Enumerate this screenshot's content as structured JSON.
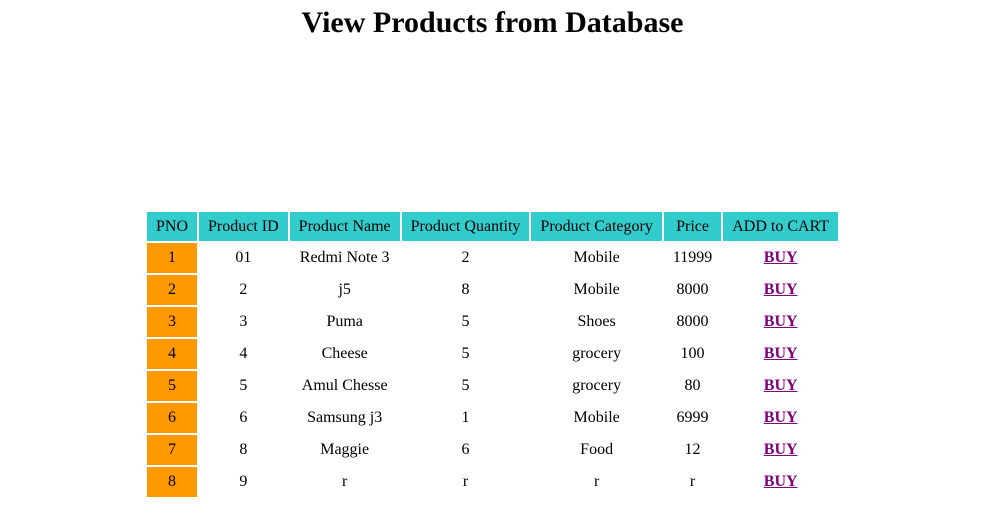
{
  "page": {
    "title": "View Products from Database"
  },
  "table": {
    "headers": [
      "PNO",
      "Product ID",
      "Product Name",
      "Product Quantity",
      "Product Category",
      "Price",
      "ADD to CART"
    ],
    "rows": [
      {
        "pno": "1",
        "product_id": "01",
        "name": "Redmi Note 3",
        "quantity": "2",
        "category": "Mobile",
        "price": "11999",
        "action": "BUY"
      },
      {
        "pno": "2",
        "product_id": "2",
        "name": "j5",
        "quantity": "8",
        "category": "Mobile",
        "price": "8000",
        "action": "BUY"
      },
      {
        "pno": "3",
        "product_id": "3",
        "name": "Puma",
        "quantity": "5",
        "category": "Shoes",
        "price": "8000",
        "action": "BUY"
      },
      {
        "pno": "4",
        "product_id": "4",
        "name": "Cheese",
        "quantity": "5",
        "category": "grocery",
        "price": "100",
        "action": "BUY"
      },
      {
        "pno": "5",
        "product_id": "5",
        "name": "Amul Chesse",
        "quantity": "5",
        "category": "grocery",
        "price": "80",
        "action": "BUY"
      },
      {
        "pno": "6",
        "product_id": "6",
        "name": "Samsung j3",
        "quantity": "1",
        "category": "Mobile",
        "price": "6999",
        "action": "BUY"
      },
      {
        "pno": "7",
        "product_id": "8",
        "name": "Maggie",
        "quantity": "6",
        "category": "Food",
        "price": "12",
        "action": "BUY"
      },
      {
        "pno": "8",
        "product_id": "9",
        "name": "r",
        "quantity": "r",
        "category": "r",
        "price": "r",
        "action": "BUY"
      }
    ]
  },
  "colors": {
    "header_bg": "#33cccc",
    "pno_bg": "#ff9900",
    "link": "#800080"
  }
}
